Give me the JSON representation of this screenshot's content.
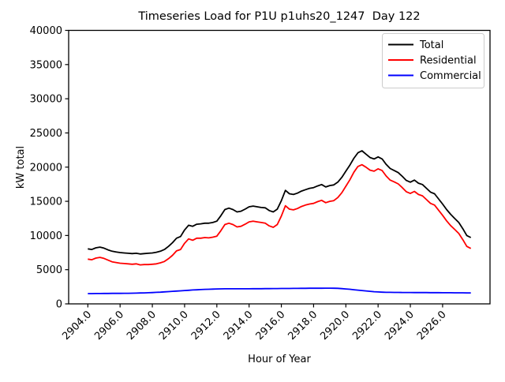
{
  "figure": {
    "title": "Timeseries Load for P1U p1uhs20_1247  Day 122",
    "xlabel": "Hour of Year",
    "ylabel": "kW total"
  },
  "legend": {
    "entries": [
      {
        "label": "Total",
        "color": "#000000"
      },
      {
        "label": "Residential",
        "color": "#ff0000"
      },
      {
        "label": "Commercial",
        "color": "#0000ff"
      }
    ]
  },
  "chart_data": {
    "type": "line",
    "title": "Timeseries Load for P1U p1uhs20_1247  Day 122",
    "xlabel": "Hour of Year",
    "ylabel": "kW total",
    "xlim": [
      2902.81,
      2928.94
    ],
    "ylim": [
      0,
      40000
    ],
    "grid": false,
    "legend_position": "upper right",
    "xtick_values": [
      2904,
      2906,
      2908,
      2910,
      2912,
      2914,
      2916,
      2918,
      2920,
      2922,
      2924,
      2926
    ],
    "xtick_labels": [
      "2904.0",
      "2906.0",
      "2908.0",
      "2910.0",
      "2912.0",
      "2914.0",
      "2916.0",
      "2918.0",
      "2920.0",
      "2922.0",
      "2924.0",
      "2926.0"
    ],
    "ytick_values": [
      0,
      5000,
      10000,
      15000,
      20000,
      25000,
      30000,
      35000,
      40000
    ],
    "ytick_labels": [
      "0",
      "5000",
      "10000",
      "15000",
      "20000",
      "25000",
      "30000",
      "35000",
      "40000"
    ],
    "x": [
      2904.0,
      2904.25,
      2904.5,
      2904.75,
      2905.0,
      2905.25,
      2905.5,
      2905.75,
      2906.0,
      2906.25,
      2906.5,
      2906.75,
      2907.0,
      2907.25,
      2907.5,
      2907.75,
      2908.0,
      2908.25,
      2908.5,
      2908.75,
      2909.0,
      2909.25,
      2909.5,
      2909.75,
      2910.0,
      2910.25,
      2910.5,
      2910.75,
      2911.0,
      2911.25,
      2911.5,
      2911.75,
      2912.0,
      2912.25,
      2912.5,
      2912.75,
      2913.0,
      2913.25,
      2913.5,
      2913.75,
      2914.0,
      2914.25,
      2914.5,
      2914.75,
      2915.0,
      2915.25,
      2915.5,
      2915.75,
      2916.0,
      2916.25,
      2916.5,
      2916.75,
      2917.0,
      2917.25,
      2917.5,
      2917.75,
      2918.0,
      2918.25,
      2918.5,
      2918.75,
      2919.0,
      2919.25,
      2919.5,
      2919.75,
      2920.0,
      2920.25,
      2920.5,
      2920.75,
      2921.0,
      2921.25,
      2921.5,
      2921.75,
      2922.0,
      2922.25,
      2922.5,
      2922.75,
      2923.0,
      2923.25,
      2923.5,
      2923.75,
      2924.0,
      2924.25,
      2924.5,
      2924.75,
      2925.0,
      2925.25,
      2925.5,
      2925.75,
      2926.0,
      2926.25,
      2926.5,
      2926.75,
      2927.0,
      2927.25,
      2927.5,
      2927.75
    ],
    "series": [
      {
        "name": "Total",
        "color": "#000000",
        "values": [
          8050,
          7950,
          8200,
          8300,
          8150,
          7900,
          7700,
          7600,
          7500,
          7450,
          7400,
          7350,
          7400,
          7300,
          7350,
          7400,
          7450,
          7550,
          7700,
          7950,
          8400,
          8950,
          9600,
          9850,
          10800,
          11500,
          11350,
          11650,
          11700,
          11800,
          11800,
          11900,
          12100,
          12900,
          13800,
          14000,
          13800,
          13450,
          13550,
          13850,
          14200,
          14300,
          14200,
          14100,
          14050,
          13650,
          13450,
          13850,
          15100,
          16600,
          16100,
          16000,
          16200,
          16500,
          16700,
          16900,
          17000,
          17250,
          17450,
          17100,
          17300,
          17400,
          17800,
          18500,
          19400,
          20300,
          21300,
          22100,
          22400,
          21900,
          21400,
          21200,
          21500,
          21200,
          20400,
          19800,
          19500,
          19200,
          18650,
          18050,
          17800,
          18100,
          17650,
          17450,
          16900,
          16350,
          16100,
          15350,
          14600,
          13800,
          13100,
          12500,
          11900,
          11000,
          10000,
          9700
        ]
      },
      {
        "name": "Residential",
        "color": "#ff0000",
        "values": [
          6550,
          6450,
          6700,
          6800,
          6650,
          6400,
          6150,
          6050,
          5950,
          5900,
          5850,
          5800,
          5850,
          5700,
          5750,
          5750,
          5800,
          5850,
          6000,
          6200,
          6600,
          7100,
          7750,
          7950,
          8850,
          9500,
          9300,
          9600,
          9600,
          9700,
          9650,
          9750,
          9900,
          10700,
          11600,
          11800,
          11600,
          11250,
          11350,
          11650,
          12000,
          12100,
          12000,
          11900,
          11800,
          11400,
          11200,
          11600,
          12850,
          14350,
          13850,
          13750,
          13950,
          14250,
          14450,
          14600,
          14700,
          14950,
          15150,
          14800,
          15000,
          15100,
          15550,
          16250,
          17200,
          18150,
          19250,
          20100,
          20350,
          20000,
          19550,
          19400,
          19750,
          19500,
          18700,
          18100,
          17850,
          17550,
          17000,
          16400,
          16150,
          16450,
          16000,
          15800,
          15250,
          14700,
          14450,
          13700,
          12950,
          12150,
          11450,
          10900,
          10300,
          9400,
          8400,
          8100
        ]
      },
      {
        "name": "Commercial",
        "color": "#0000ff",
        "values": [
          1500,
          1500,
          1510,
          1510,
          1520,
          1520,
          1530,
          1530,
          1540,
          1550,
          1550,
          1560,
          1570,
          1590,
          1610,
          1630,
          1650,
          1680,
          1710,
          1750,
          1790,
          1830,
          1870,
          1910,
          1950,
          1990,
          2030,
          2060,
          2090,
          2120,
          2140,
          2160,
          2180,
          2190,
          2200,
          2200,
          2200,
          2200,
          2210,
          2210,
          2210,
          2220,
          2220,
          2220,
          2230,
          2230,
          2240,
          2240,
          2250,
          2250,
          2250,
          2260,
          2260,
          2270,
          2270,
          2280,
          2280,
          2290,
          2290,
          2300,
          2300,
          2290,
          2270,
          2230,
          2180,
          2130,
          2070,
          2010,
          1950,
          1890,
          1830,
          1780,
          1740,
          1710,
          1690,
          1680,
          1670,
          1670,
          1660,
          1660,
          1660,
          1650,
          1650,
          1650,
          1650,
          1640,
          1640,
          1640,
          1630,
          1630,
          1630,
          1620,
          1620,
          1620,
          1610,
          1610
        ]
      }
    ]
  }
}
